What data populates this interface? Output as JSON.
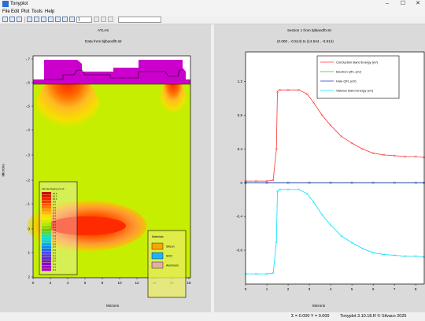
{
  "window": {
    "title": "Tonyplot",
    "minimize": "–",
    "maximize": "☐",
    "close": "✕"
  },
  "menu": [
    "File",
    "Edit",
    "Plot",
    "Tools",
    "Help"
  ],
  "toolbar": {
    "zoom_value": "1",
    "icons": [
      "open-icon",
      "save-icon",
      "print-icon",
      "copy-icon",
      "paste-icon",
      "export-icon",
      "cross-hair-icon",
      "zoom-in-icon",
      "zoom-out-icon",
      "zoom-fit-icon",
      "ruler-icon",
      "probe-icon",
      "cutline-icon"
    ]
  },
  "left_plot": {
    "header": "ATLAS",
    "title": "Data from bjtbandf0.str",
    "ylabel": "Microns",
    "xlabel": "Microns",
    "x_ticks": [
      "0",
      "2",
      "4",
      "6",
      "8",
      "10",
      "12",
      "14",
      "16",
      "18"
    ],
    "y_ticks": [
      "-.7",
      "-.6",
      "-.5",
      "-.4",
      "-.3",
      "-.2",
      "-.1",
      "0",
      "1",
      "2"
    ],
    "legend_title": "Abs Net Doping (cm-3)",
    "legend_values": [
      "10.5",
      "10.3",
      "10.1",
      "9.9",
      "9.7",
      "9.5",
      "9.3",
      "9.1",
      "8.9",
      "8.7",
      "8.5",
      "8.3",
      "8.1",
      "7.9",
      "7.7",
      "7.5",
      "7.3",
      "7.1",
      "6.9",
      "6.7",
      "6.5",
      "6.3",
      "6.1",
      "5.9",
      "5.7",
      "5.5",
      "5.3",
      "5.1"
    ],
    "legend_colors": [
      "#cc0000",
      "#dd1100",
      "#ee2200",
      "#ff3300",
      "#ff5500",
      "#ff7700",
      "#ff9900",
      "#ffbb00",
      "#ffdd00",
      "#f0f000",
      "#ccee00",
      "#aaee00",
      "#88dd00",
      "#66cc00",
      "#44dd44",
      "#22ddaa",
      "#00ddcc",
      "#00ccee",
      "#00aaff",
      "#0088ff",
      "#2266ff",
      "#4444ff",
      "#5533ee",
      "#6622dd",
      "#7711cc",
      "#8800cc",
      "#9900cc",
      "#aa00cc"
    ],
    "materials_title": "Materials",
    "materials": [
      {
        "name": "Silicon",
        "color": "#f7a800"
      },
      {
        "name": "SiO2",
        "color": "#1eb4ff"
      },
      {
        "name": "Aluminum",
        "color": "#e0b0a0"
      }
    ],
    "field_color": "#c6ee00",
    "top_color": "#cc00cc"
  },
  "right_plot": {
    "title": "Section 1 from bjtbandf0.str",
    "subtitle": "(0.000 , -0.514) to (14.544 , -0.514)",
    "xlabel": "Microns",
    "x_ticks": [
      "0",
      "1",
      "2",
      "3",
      "4",
      "5",
      "6",
      "7",
      "8"
    ],
    "y_ticks": [
      "1.2",
      "0.8",
      "0.4",
      "0",
      "-0.4",
      "-0.8"
    ],
    "legend": [
      {
        "name": "Conduction Band Energy (eV)",
        "color": "#ff3333"
      },
      {
        "name": "Electron QFL (eV)",
        "color": "#22cc22"
      },
      {
        "name": "Hole QFL (eV)",
        "color": "#3333cc"
      },
      {
        "name": "Valence Band Energy (eV)",
        "color": "#00e0ff"
      }
    ]
  },
  "chart_data": {
    "type": "line",
    "title": "Section 1 from bjtbandf0.str",
    "subtitle": "(0.000 , -0.514) to (14.544 , -0.514)",
    "xlabel": "Microns",
    "ylabel": "",
    "xlim": [
      0,
      8.4
    ],
    "ylim": [
      -1.2,
      1.55
    ],
    "x_ticks": [
      0,
      1,
      2,
      3,
      4,
      5,
      6,
      7,
      8
    ],
    "y_ticks": [
      1.2,
      0.8,
      0.4,
      0,
      -0.4,
      -0.8
    ],
    "grid": false,
    "legend_position": "top-right",
    "series": [
      {
        "name": "Conduction Band Energy (eV)",
        "color": "#ff3333",
        "x": [
          0,
          0.5,
          1.0,
          1.3,
          1.45,
          1.5,
          1.6,
          2.0,
          2.5,
          2.9,
          3.2,
          3.6,
          4.0,
          4.5,
          5.0,
          5.5,
          6.0,
          6.5,
          7.0,
          7.5,
          8.0,
          8.4
        ],
        "y": [
          0.02,
          0.02,
          0.02,
          0.03,
          0.4,
          1.08,
          1.1,
          1.1,
          1.1,
          1.05,
          0.95,
          0.8,
          0.68,
          0.55,
          0.47,
          0.4,
          0.35,
          0.33,
          0.32,
          0.31,
          0.31,
          0.3
        ]
      },
      {
        "name": "Electron QFL (eV)",
        "color": "#22cc22",
        "x": [
          0,
          1,
          2,
          3,
          4,
          5,
          6,
          7,
          8,
          8.4
        ],
        "y": [
          0,
          0,
          0,
          0,
          0,
          0,
          0,
          0,
          0,
          0
        ]
      },
      {
        "name": "Hole QFL (eV)",
        "color": "#3333cc",
        "x": [
          0,
          1,
          2,
          3,
          4,
          5,
          6,
          7,
          8,
          8.4
        ],
        "y": [
          0,
          0,
          0,
          0,
          0,
          0,
          0,
          0,
          0,
          0
        ]
      },
      {
        "name": "Valence Band Energy (eV)",
        "color": "#00e0ff",
        "x": [
          0,
          0.5,
          1.0,
          1.3,
          1.45,
          1.5,
          1.6,
          2.0,
          2.5,
          2.9,
          3.2,
          3.6,
          4.0,
          4.5,
          5.0,
          5.5,
          6.0,
          6.5,
          7.0,
          7.5,
          8.0,
          8.4
        ],
        "y": [
          -1.08,
          -1.08,
          -1.08,
          -1.07,
          -0.7,
          -0.1,
          -0.08,
          -0.08,
          -0.08,
          -0.13,
          -0.23,
          -0.38,
          -0.5,
          -0.63,
          -0.71,
          -0.78,
          -0.83,
          -0.85,
          -0.86,
          -0.87,
          -0.87,
          -0.88
        ]
      }
    ]
  },
  "status": {
    "coords": "Σ = 0.000 Υ = 0.000",
    "version": "Tonyplot 3.10.18.R © Silvaco 2025"
  }
}
